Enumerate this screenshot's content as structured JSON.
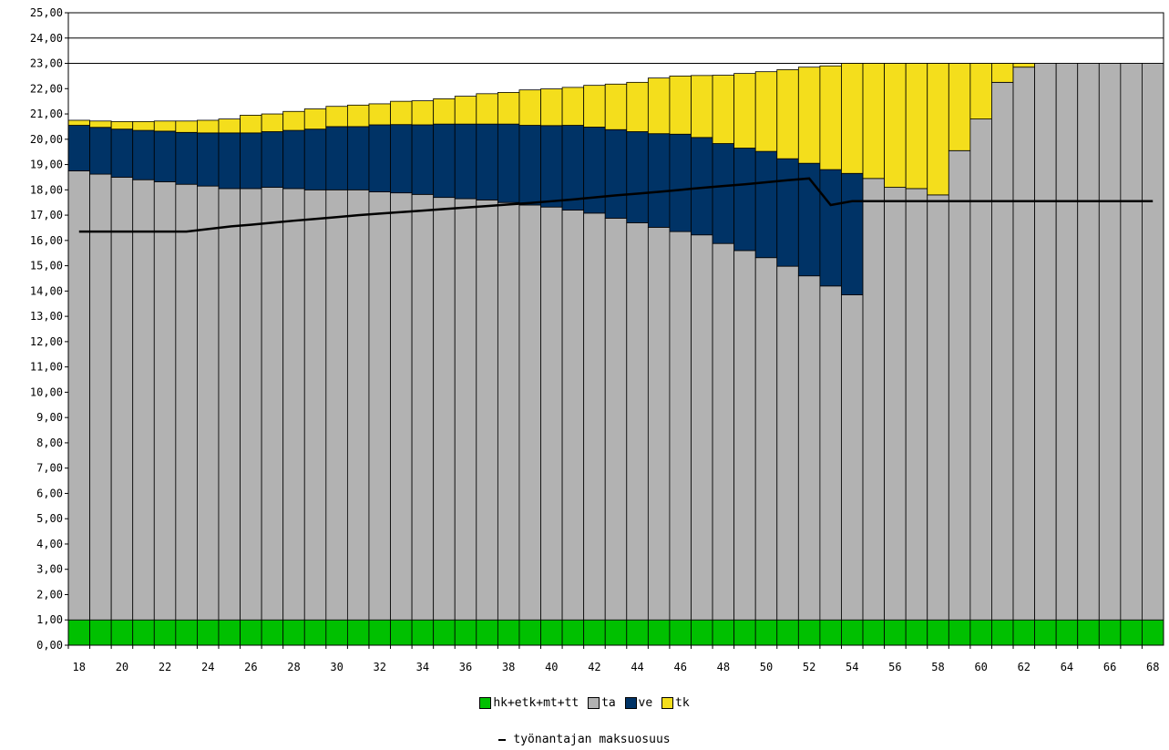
{
  "chart_data": {
    "type": "bar",
    "stacked": true,
    "ylim": [
      0,
      25
    ],
    "y_ticks": [
      "0,00",
      "1,00",
      "2,00",
      "3,00",
      "4,00",
      "5,00",
      "6,00",
      "7,00",
      "8,00",
      "9,00",
      "10,00",
      "11,00",
      "12,00",
      "13,00",
      "14,00",
      "15,00",
      "16,00",
      "17,00",
      "18,00",
      "19,00",
      "20,00",
      "21,00",
      "22,00",
      "23,00",
      "24,00",
      "25,00"
    ],
    "categories": [
      18,
      19,
      20,
      21,
      22,
      23,
      24,
      25,
      26,
      27,
      28,
      29,
      30,
      31,
      32,
      33,
      34,
      35,
      36,
      37,
      38,
      39,
      40,
      41,
      42,
      43,
      44,
      45,
      46,
      47,
      48,
      49,
      50,
      51,
      52,
      53,
      54,
      55,
      56,
      57,
      58,
      59,
      60,
      61,
      62,
      63,
      64,
      65,
      66,
      67,
      68
    ],
    "x_tick_labels": [
      "18",
      "20",
      "22",
      "24",
      "26",
      "28",
      "30",
      "32",
      "34",
      "36",
      "38",
      "40",
      "42",
      "44",
      "46",
      "48",
      "50",
      "52",
      "54",
      "56",
      "58",
      "60",
      "62",
      "64",
      "66",
      "68"
    ],
    "grid": "horizontal lines at 23, 24, 25",
    "legend_position": "bottom",
    "series": [
      {
        "name": "hk+etk+mt+tt",
        "color": "#00c000",
        "values": [
          1,
          1,
          1,
          1,
          1,
          1,
          1,
          1,
          1,
          1,
          1,
          1,
          1,
          1,
          1,
          1,
          1,
          1,
          1,
          1,
          1,
          1,
          1,
          1,
          1,
          1,
          1,
          1,
          1,
          1,
          1,
          1,
          1,
          1,
          1,
          1,
          1,
          1,
          1,
          1,
          1,
          1,
          1,
          1,
          1,
          1,
          1,
          1,
          1,
          1,
          1
        ]
      },
      {
        "name": "ta",
        "color": "#b2b2b2",
        "values": [
          17.75,
          17.62,
          17.5,
          17.4,
          17.32,
          17.22,
          17.15,
          17.05,
          17.05,
          17.1,
          17.05,
          17,
          17,
          17,
          16.92,
          16.88,
          16.82,
          16.7,
          16.65,
          16.6,
          16.5,
          16.4,
          16.32,
          16.2,
          16.08,
          15.88,
          15.7,
          15.52,
          15.35,
          15.22,
          14.88,
          14.6,
          14.32,
          13.98,
          13.6,
          13.2,
          12.85,
          17.45,
          17.1,
          17.05,
          16.8,
          18.55,
          19.8,
          21.25,
          21.85,
          22,
          22,
          22,
          22,
          22,
          22
        ]
      },
      {
        "name": "ve",
        "color": "#003366",
        "values": [
          1.8,
          1.85,
          1.9,
          1.95,
          2,
          2.05,
          2.1,
          2.2,
          2.2,
          2.2,
          2.3,
          2.4,
          2.5,
          2.5,
          2.65,
          2.7,
          2.75,
          2.9,
          2.95,
          3,
          3.1,
          3.15,
          3.22,
          3.35,
          3.4,
          3.5,
          3.6,
          3.7,
          3.85,
          3.85,
          3.95,
          4.05,
          4.2,
          4.25,
          4.45,
          4.6,
          4.8,
          0,
          0,
          0,
          0,
          0,
          0,
          0,
          0,
          0,
          0,
          0,
          0,
          0,
          0
        ]
      },
      {
        "name": "tk",
        "color": "#f4de1c",
        "values": [
          0.2,
          0.25,
          0.3,
          0.35,
          0.4,
          0.45,
          0.5,
          0.55,
          0.7,
          0.7,
          0.75,
          0.8,
          0.8,
          0.85,
          0.83,
          0.92,
          0.95,
          1,
          1.1,
          1.2,
          1.25,
          1.4,
          1.45,
          1.5,
          1.65,
          1.8,
          1.95,
          2.2,
          2.3,
          2.45,
          2.7,
          2.95,
          3.15,
          3.52,
          3.8,
          4.1,
          4.35,
          4.55,
          4.9,
          4.95,
          5.2,
          3.45,
          2.2,
          0.75,
          0.15,
          0,
          0,
          0,
          0,
          0,
          0
        ]
      }
    ],
    "line_series": {
      "name": "työnantajan maksuosuus",
      "color": "#000000",
      "values": [
        16.35,
        16.35,
        16.35,
        16.35,
        16.35,
        16.35,
        16.45,
        16.55,
        16.62,
        16.7,
        16.78,
        16.85,
        16.92,
        17,
        17.06,
        17.12,
        17.18,
        17.24,
        17.3,
        17.36,
        17.42,
        17.48,
        17.55,
        17.62,
        17.7,
        17.78,
        17.85,
        17.92,
        18,
        18.08,
        18.15,
        18.22,
        18.3,
        18.38,
        18.45,
        17.4,
        17.55,
        17.55,
        17.55,
        17.55,
        17.55,
        17.55,
        17.55,
        17.55,
        17.55,
        17.55,
        17.55,
        17.55,
        17.55,
        17.55,
        17.55
      ]
    }
  }
}
